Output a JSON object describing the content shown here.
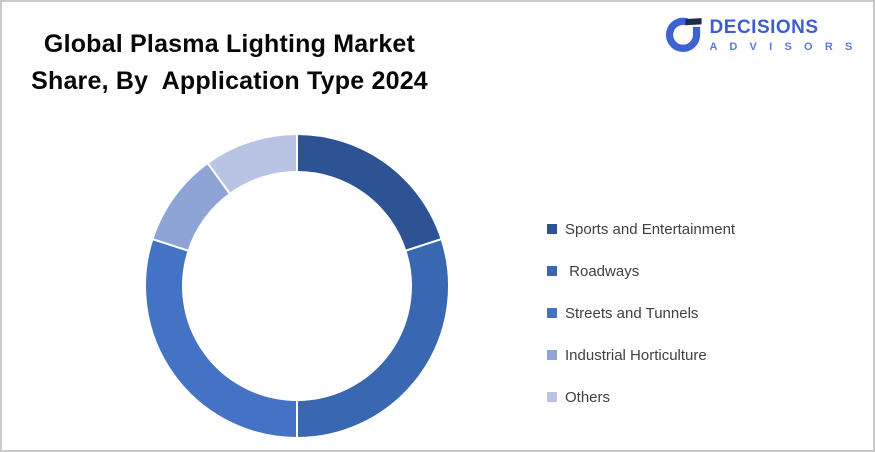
{
  "title": "Global Plasma Lighting Market\nShare, By  Application Type 2024",
  "logo": {
    "name": "DECISIONS",
    "subtitle": "A D V I S O R S",
    "name_color": "#3D5ECF",
    "subtitle_color": "#5C7BD9",
    "icon_blue": "#3D63D2",
    "icon_flag_color": "#1E2B4D"
  },
  "frame": {
    "border_color": "#C9C9C9",
    "background_color": "#FFFFFF"
  },
  "chart_data": {
    "type": "pie",
    "subtype": "donut",
    "title": "Global Plasma Lighting Market Share, By Application Type 2024",
    "categories": [
      "Sports and Entertainment",
      " Roadways",
      "Streets and Tunnels",
      "Industrial Horticulture",
      "Others"
    ],
    "values": [
      20,
      30,
      30,
      10,
      10
    ],
    "unit": "percent",
    "colors": [
      "#2E5395",
      "#3A67B1",
      "#4472C4",
      "#8FA4D6",
      "#B9C3E4"
    ],
    "start_angle_deg": 0,
    "direction": "clockwise",
    "donut_hole_ratio": 0.75,
    "separator_color": "#FFFFFF",
    "legend_position": "right",
    "legend_text_color": "#404040",
    "data_labels": false
  }
}
